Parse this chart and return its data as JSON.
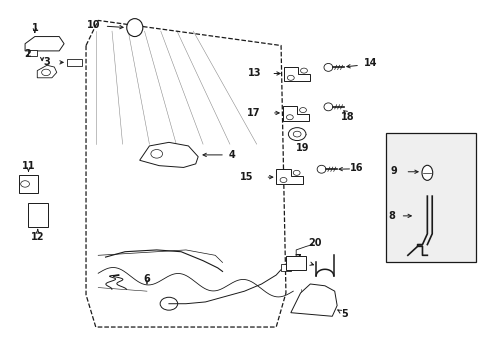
{
  "bg_color": "#ffffff",
  "line_color": "#1a1a1a",
  "fig_width": 4.89,
  "fig_height": 3.6,
  "dpi": 100,
  "door_outline_x": [
    0.175,
    0.175,
    0.195,
    0.21,
    0.56,
    0.585,
    0.575,
    0.555,
    0.185,
    0.175
  ],
  "door_outline_y": [
    0.875,
    0.185,
    0.115,
    0.085,
    0.085,
    0.18,
    0.875,
    0.945,
    0.945,
    0.875
  ]
}
